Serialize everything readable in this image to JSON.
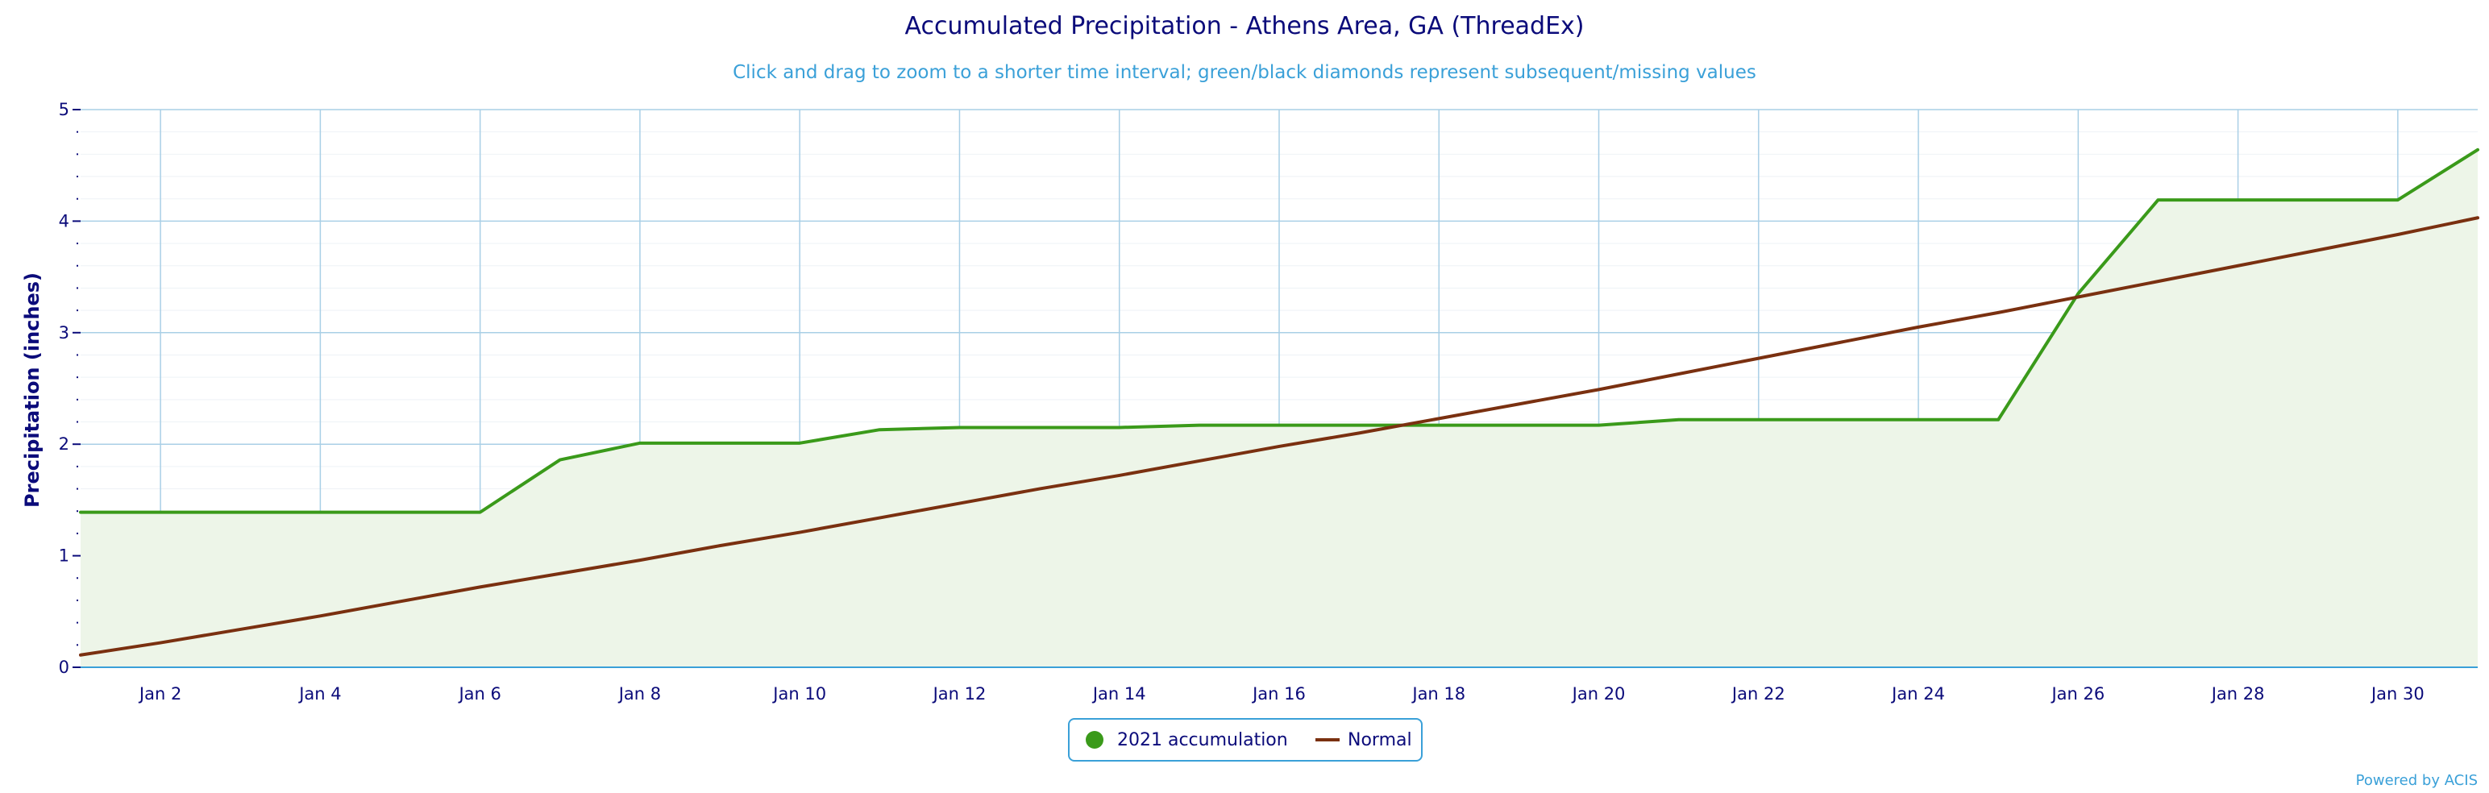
{
  "chart_data": {
    "type": "line",
    "title": "Accumulated Precipitation - Athens Area, GA (ThreadEx)",
    "subtitle": "Click and drag to zoom to a shorter time interval; green/black diamonds represent subsequent/missing values",
    "ylabel": "Precipitation (inches)",
    "xlabel": "",
    "ylim": [
      0,
      5
    ],
    "xlim": [
      1,
      31
    ],
    "yticks": [
      "0",
      "1",
      "2",
      "3",
      "4",
      "5"
    ],
    "xtick_labels": [
      "Jan 2",
      "Jan 4",
      "Jan 6",
      "Jan 8",
      "Jan 10",
      "Jan 12",
      "Jan 14",
      "Jan 16",
      "Jan 18",
      "Jan 20",
      "Jan 22",
      "Jan 24",
      "Jan 26",
      "Jan 28",
      "Jan 30"
    ],
    "x": [
      1,
      2,
      3,
      4,
      5,
      6,
      7,
      8,
      9,
      10,
      11,
      12,
      13,
      14,
      15,
      16,
      17,
      18,
      19,
      20,
      21,
      22,
      23,
      24,
      25,
      26,
      27,
      28,
      29,
      30,
      31
    ],
    "grid": true,
    "legend_position": "bottom-center",
    "series": [
      {
        "name": "2021 accumulation",
        "color": "#3a9a1a",
        "fill": "#edf5e8",
        "values": [
          1.39,
          1.39,
          1.39,
          1.39,
          1.39,
          1.39,
          1.86,
          2.01,
          2.01,
          2.01,
          2.13,
          2.15,
          2.15,
          2.15,
          2.17,
          2.17,
          2.17,
          2.17,
          2.17,
          2.17,
          2.22,
          2.22,
          2.22,
          2.22,
          2.22,
          3.35,
          4.19,
          4.19,
          4.19,
          4.19,
          4.64
        ]
      },
      {
        "name": "Normal",
        "color": "#7a3010",
        "values": [
          0.11,
          0.22,
          0.34,
          0.46,
          0.59,
          0.72,
          0.84,
          0.96,
          1.09,
          1.21,
          1.34,
          1.47,
          1.6,
          1.72,
          1.85,
          1.98,
          2.1,
          2.23,
          2.36,
          2.49,
          2.63,
          2.77,
          2.91,
          3.05,
          3.18,
          3.32,
          3.46,
          3.6,
          3.74,
          3.88,
          4.03
        ]
      }
    ]
  },
  "credit": "Powered by ACIS"
}
